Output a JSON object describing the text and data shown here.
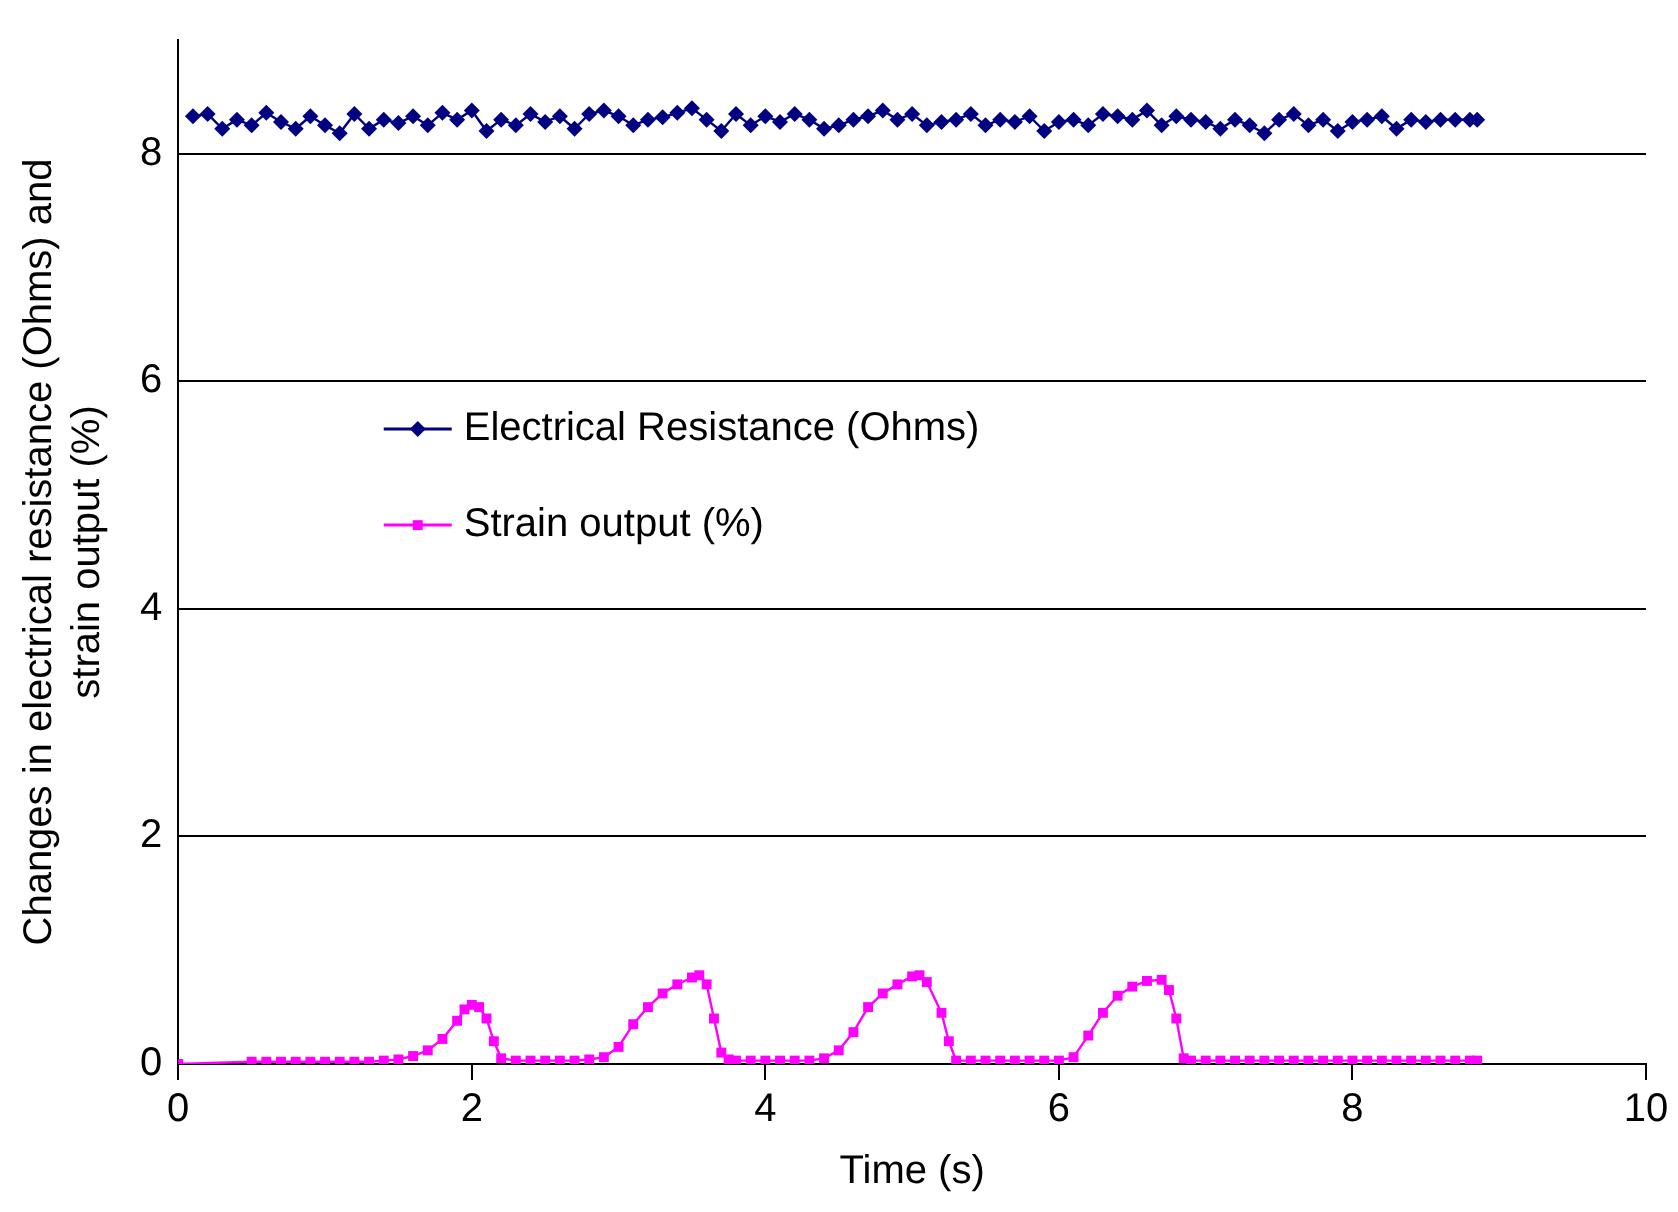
{
  "chart_data": {
    "type": "line",
    "xlabel": "Time (s)",
    "ylabel": "Changes in electrical resistance (Ohms) and strain output (%)",
    "xlim": [
      0,
      10
    ],
    "xticks": [
      0,
      2,
      4,
      6,
      8,
      10
    ],
    "ylim": [
      0,
      9
    ],
    "yticks": [
      0,
      2,
      4,
      6,
      8
    ],
    "grid": "y",
    "legend": "center",
    "line_style": "solid",
    "series": [
      {
        "name": "Electrical Resistance (Ohms)",
        "color": "#000080",
        "marker": "diamond",
        "x": [
          0.1,
          0.2,
          0.3,
          0.4,
          0.5,
          0.6,
          0.7,
          0.8,
          0.9,
          1.0,
          1.1,
          1.2,
          1.3,
          1.4,
          1.5,
          1.6,
          1.7,
          1.8,
          1.9,
          2.0,
          2.1,
          2.2,
          2.3,
          2.4,
          2.5,
          2.6,
          2.7,
          2.8,
          2.9,
          3.0,
          3.1,
          3.2,
          3.3,
          3.4,
          3.5,
          3.6,
          3.7,
          3.8,
          3.9,
          4.0,
          4.1,
          4.2,
          4.3,
          4.4,
          4.5,
          4.6,
          4.7,
          4.8,
          4.9,
          5.0,
          5.1,
          5.2,
          5.3,
          5.4,
          5.5,
          5.6,
          5.7,
          5.8,
          5.9,
          6.0,
          6.1,
          6.2,
          6.3,
          6.4,
          6.5,
          6.6,
          6.7,
          6.8,
          6.9,
          7.0,
          7.1,
          7.2,
          7.3,
          7.4,
          7.5,
          7.6,
          7.7,
          7.8,
          7.9,
          8.0,
          8.1,
          8.2,
          8.3,
          8.4,
          8.5,
          8.6,
          8.7,
          8.8,
          8.85
        ],
        "values": [
          8.33,
          8.35,
          8.22,
          8.3,
          8.25,
          8.36,
          8.28,
          8.22,
          8.33,
          8.25,
          8.18,
          8.35,
          8.22,
          8.3,
          8.27,
          8.33,
          8.25,
          8.36,
          8.3,
          8.38,
          8.2,
          8.3,
          8.25,
          8.35,
          8.28,
          8.33,
          8.22,
          8.35,
          8.38,
          8.33,
          8.25,
          8.3,
          8.32,
          8.36,
          8.4,
          8.3,
          8.2,
          8.35,
          8.25,
          8.33,
          8.28,
          8.35,
          8.3,
          8.22,
          8.25,
          8.3,
          8.33,
          8.38,
          8.3,
          8.35,
          8.25,
          8.28,
          8.3,
          8.35,
          8.25,
          8.3,
          8.28,
          8.33,
          8.2,
          8.28,
          8.3,
          8.25,
          8.35,
          8.33,
          8.3,
          8.38,
          8.25,
          8.33,
          8.3,
          8.28,
          8.22,
          8.3,
          8.25,
          8.18,
          8.3,
          8.35,
          8.25,
          8.3,
          8.2,
          8.28,
          8.3,
          8.33,
          8.22,
          8.3,
          8.28,
          8.3,
          8.3,
          8.3,
          8.3
        ]
      },
      {
        "name": "Strain output (%)",
        "color": "#ff00ff",
        "marker": "square",
        "x": [
          0,
          0.5,
          0.6,
          0.7,
          0.8,
          0.9,
          1.0,
          1.1,
          1.2,
          1.3,
          1.4,
          1.5,
          1.6,
          1.7,
          1.8,
          1.9,
          1.95,
          2.0,
          2.05,
          2.1,
          2.15,
          2.2,
          2.3,
          2.4,
          2.5,
          2.6,
          2.7,
          2.8,
          2.9,
          3.0,
          3.1,
          3.2,
          3.3,
          3.4,
          3.5,
          3.55,
          3.6,
          3.65,
          3.7,
          3.75,
          3.8,
          3.9,
          4.0,
          4.1,
          4.2,
          4.3,
          4.4,
          4.5,
          4.6,
          4.7,
          4.8,
          4.9,
          5.0,
          5.05,
          5.1,
          5.2,
          5.25,
          5.3,
          5.4,
          5.5,
          5.6,
          5.7,
          5.8,
          5.9,
          6.0,
          6.1,
          6.2,
          6.3,
          6.4,
          6.5,
          6.6,
          6.7,
          6.75,
          6.8,
          6.85,
          6.9,
          7.0,
          7.1,
          7.2,
          7.3,
          7.4,
          7.5,
          7.6,
          7.7,
          7.8,
          7.9,
          8.0,
          8.1,
          8.2,
          8.3,
          8.4,
          8.5,
          8.6,
          8.7,
          8.8,
          8.85
        ],
        "values": [
          0,
          0.02,
          0.02,
          0.02,
          0.02,
          0.02,
          0.02,
          0.02,
          0.02,
          0.02,
          0.03,
          0.04,
          0.07,
          0.12,
          0.22,
          0.38,
          0.48,
          0.52,
          0.5,
          0.4,
          0.2,
          0.05,
          0.03,
          0.03,
          0.03,
          0.03,
          0.03,
          0.04,
          0.06,
          0.15,
          0.35,
          0.5,
          0.62,
          0.7,
          0.76,
          0.78,
          0.7,
          0.4,
          0.1,
          0.04,
          0.03,
          0.03,
          0.03,
          0.03,
          0.03,
          0.03,
          0.05,
          0.12,
          0.28,
          0.5,
          0.62,
          0.7,
          0.77,
          0.78,
          0.72,
          0.45,
          0.2,
          0.03,
          0.03,
          0.03,
          0.03,
          0.03,
          0.03,
          0.03,
          0.03,
          0.06,
          0.25,
          0.45,
          0.6,
          0.68,
          0.73,
          0.74,
          0.65,
          0.4,
          0.05,
          0.03,
          0.03,
          0.03,
          0.03,
          0.03,
          0.03,
          0.03,
          0.03,
          0.03,
          0.03,
          0.03,
          0.03,
          0.03,
          0.03,
          0.03,
          0.03,
          0.03,
          0.03,
          0.03,
          0.03,
          0.03
        ]
      }
    ]
  }
}
